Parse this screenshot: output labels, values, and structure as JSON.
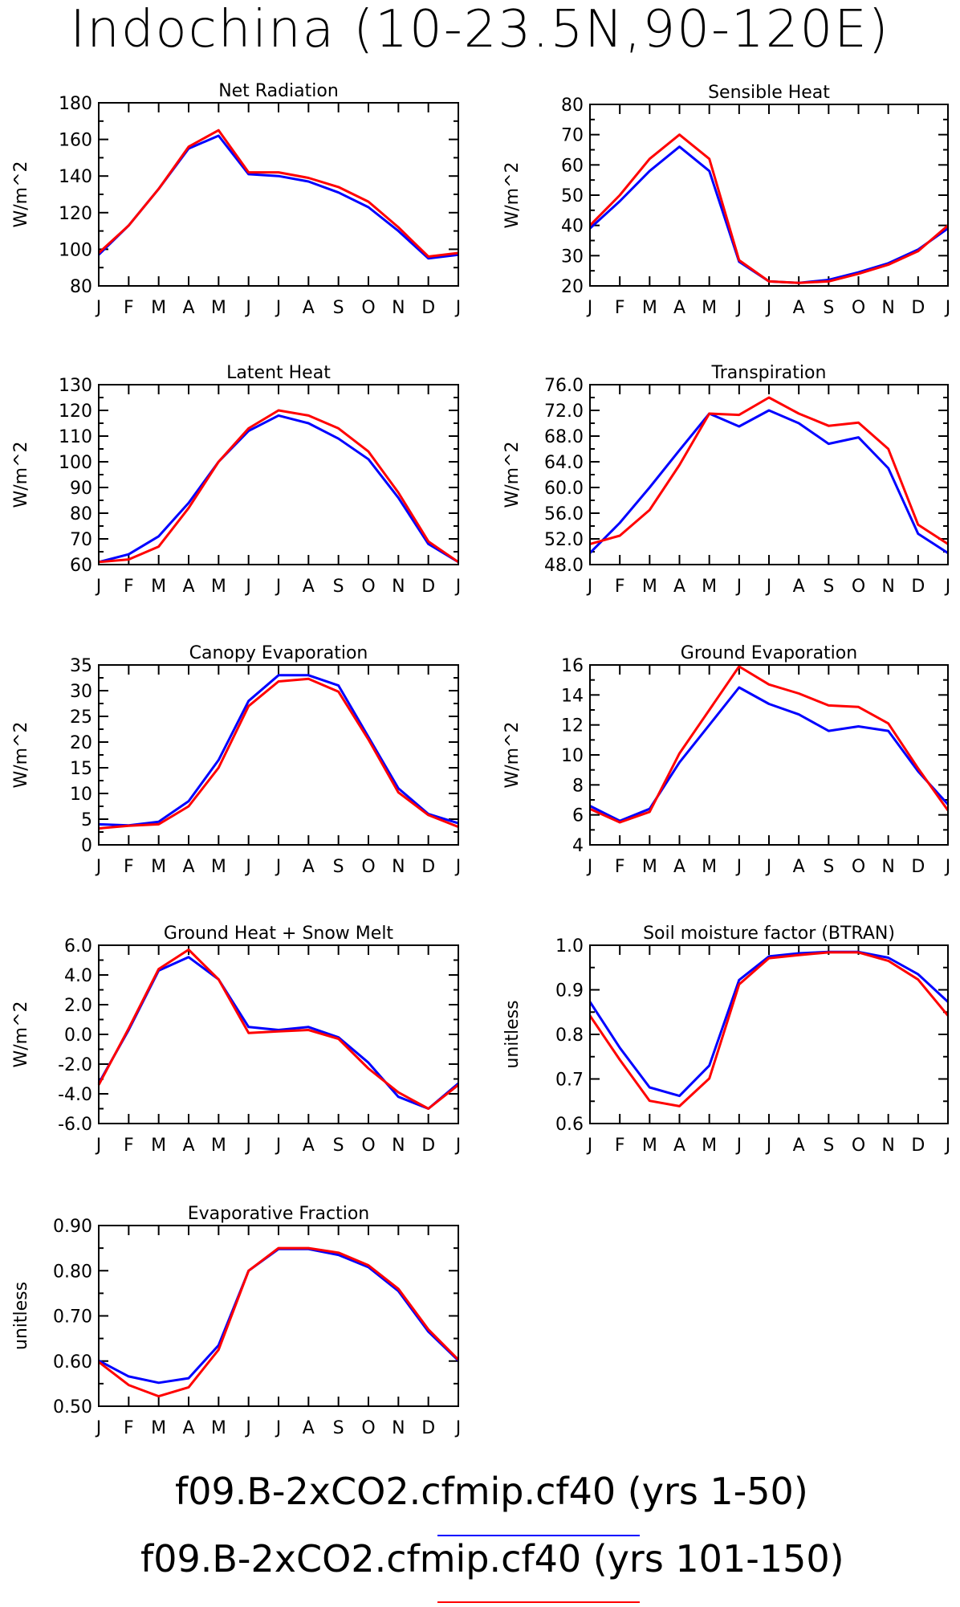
{
  "title": "Indochina (10-23.5N,90-120E)",
  "colors": {
    "series1": "#0000ff",
    "series2": "#ff0000",
    "axis": "#000000"
  },
  "legend": [
    {
      "text": "f09.B-2xCO2.cfmip.cf40 (yrs 1-50)",
      "color": "#0000ff"
    },
    {
      "text": "f09.B-2xCO2.cfmip.cf40 (yrs 101-150)",
      "color": "#ff0000"
    }
  ],
  "chart_data": [
    {
      "type": "line",
      "title": "Net Radiation",
      "ylabel": "W/m^2",
      "categories": [
        "J",
        "F",
        "M",
        "A",
        "M",
        "J",
        "J",
        "A",
        "S",
        "O",
        "N",
        "D",
        "J"
      ],
      "ylim": [
        80,
        180
      ],
      "yticks": [
        80,
        100,
        120,
        140,
        160,
        180
      ],
      "ytick_labels": [
        "80",
        "100",
        "120",
        "140",
        "160",
        "180"
      ],
      "series": [
        {
          "values": [
            97,
            113,
            133,
            155,
            162,
            141,
            140,
            137,
            131,
            123,
            110,
            95,
            97
          ],
          "color": "#0000ff"
        },
        {
          "values": [
            98,
            113,
            133,
            156,
            165,
            142,
            142,
            139,
            134,
            126,
            112,
            96,
            98
          ],
          "color": "#ff0000"
        }
      ]
    },
    {
      "type": "line",
      "title": "Sensible Heat",
      "ylabel": "W/m^2",
      "categories": [
        "J",
        "F",
        "M",
        "A",
        "M",
        "J",
        "J",
        "A",
        "S",
        "O",
        "N",
        "D",
        "J"
      ],
      "ylim": [
        20,
        80
      ],
      "yticks": [
        20,
        30,
        40,
        50,
        60,
        70,
        80
      ],
      "ytick_labels": [
        "20",
        "30",
        "40",
        "50",
        "60",
        "70",
        "80"
      ],
      "series": [
        {
          "values": [
            39,
            48,
            58,
            66,
            58,
            28,
            21.5,
            21,
            22,
            24.5,
            27.5,
            32,
            39
          ],
          "color": "#0000ff"
        },
        {
          "values": [
            40,
            50,
            62,
            70,
            62,
            28.5,
            21.5,
            21,
            21.5,
            24,
            27,
            31.5,
            40
          ],
          "color": "#ff0000"
        }
      ]
    },
    {
      "type": "line",
      "title": "Latent Heat",
      "ylabel": "W/m^2",
      "categories": [
        "J",
        "F",
        "M",
        "A",
        "M",
        "J",
        "J",
        "A",
        "S",
        "O",
        "N",
        "D",
        "J"
      ],
      "ylim": [
        60,
        130
      ],
      "yticks": [
        60,
        70,
        80,
        90,
        100,
        110,
        120,
        130
      ],
      "ytick_labels": [
        "60",
        "70",
        "80",
        "90",
        "100",
        "110",
        "120",
        "130"
      ],
      "series": [
        {
          "values": [
            61,
            64,
            71,
            84,
            100,
            112,
            118,
            115,
            109,
            101,
            86,
            68,
            61
          ],
          "color": "#0000ff"
        },
        {
          "values": [
            61,
            62,
            67,
            82,
            100,
            113,
            120,
            118,
            113,
            104,
            88,
            69,
            61
          ],
          "color": "#ff0000"
        }
      ]
    },
    {
      "type": "line",
      "title": "Transpiration",
      "ylabel": "W/m^2",
      "categories": [
        "J",
        "F",
        "M",
        "A",
        "M",
        "J",
        "J",
        "A",
        "S",
        "O",
        "N",
        "D",
        "J"
      ],
      "ylim": [
        48,
        76
      ],
      "yticks": [
        48,
        52,
        56,
        60,
        64,
        68,
        72,
        76
      ],
      "ytick_labels": [
        "48.0",
        "52.0",
        "56.0",
        "60.0",
        "64.0",
        "68.0",
        "72.0",
        "76.0"
      ],
      "series": [
        {
          "values": [
            49.8,
            54.5,
            60,
            65.8,
            71.5,
            69.5,
            72,
            70,
            66.8,
            67.8,
            63,
            52.8,
            49.8
          ],
          "color": "#0000ff"
        },
        {
          "values": [
            51.2,
            52.5,
            56.5,
            63.5,
            71.5,
            71.3,
            74,
            71.5,
            69.6,
            70.1,
            66,
            54.2,
            51.2
          ],
          "color": "#ff0000"
        }
      ]
    },
    {
      "type": "line",
      "title": "Canopy Evaporation",
      "ylabel": "W/m^2",
      "categories": [
        "J",
        "F",
        "M",
        "A",
        "M",
        "J",
        "J",
        "A",
        "S",
        "O",
        "N",
        "D",
        "J"
      ],
      "ylim": [
        0,
        35
      ],
      "yticks": [
        0,
        5,
        10,
        15,
        20,
        25,
        30,
        35
      ],
      "ytick_labels": [
        "0",
        "5",
        "10",
        "15",
        "20",
        "25",
        "30",
        "35"
      ],
      "series": [
        {
          "values": [
            4,
            3.8,
            4.5,
            8.5,
            16.5,
            28,
            33,
            33,
            31,
            21,
            11,
            6,
            4.2
          ],
          "color": "#0000ff"
        },
        {
          "values": [
            3.2,
            3.7,
            4,
            7.5,
            15,
            27,
            31.8,
            32.3,
            29.8,
            20.5,
            10.2,
            5.8,
            3.5
          ],
          "color": "#ff0000"
        }
      ]
    },
    {
      "type": "line",
      "title": "Ground Evaporation",
      "ylabel": "W/m^2",
      "categories": [
        "J",
        "F",
        "M",
        "A",
        "M",
        "J",
        "J",
        "A",
        "S",
        "O",
        "N",
        "D",
        "J"
      ],
      "ylim": [
        4,
        16
      ],
      "yticks": [
        4,
        6,
        8,
        10,
        12,
        14,
        16
      ],
      "ytick_labels": [
        "4",
        "6",
        "8",
        "10",
        "12",
        "14",
        "16"
      ],
      "series": [
        {
          "values": [
            6.6,
            5.6,
            6.4,
            9.5,
            12,
            14.5,
            13.4,
            12.7,
            11.6,
            11.9,
            11.6,
            8.9,
            6.7
          ],
          "color": "#0000ff"
        },
        {
          "values": [
            6.4,
            5.5,
            6.2,
            10.1,
            13,
            15.9,
            14.7,
            14.1,
            13.3,
            13.2,
            12.1,
            9.1,
            6.3
          ],
          "color": "#ff0000"
        }
      ]
    },
    {
      "type": "line",
      "title": "Ground Heat + Snow Melt",
      "ylabel": "W/m^2",
      "categories": [
        "J",
        "F",
        "M",
        "A",
        "M",
        "J",
        "J",
        "A",
        "S",
        "O",
        "N",
        "D",
        "J"
      ],
      "ylim": [
        -6,
        6
      ],
      "yticks": [
        -6,
        -4,
        -2,
        0,
        2,
        4,
        6
      ],
      "ytick_labels": [
        "-6.0",
        "-4.0",
        "-2.0",
        "0.0",
        "2.0",
        "4.0",
        "6.0"
      ],
      "series": [
        {
          "values": [
            -3.3,
            0.3,
            4.3,
            5.2,
            3.7,
            0.5,
            0.3,
            0.5,
            -0.2,
            -1.9,
            -4.2,
            -5,
            -3.3
          ],
          "color": "#0000ff"
        },
        {
          "values": [
            -3.4,
            0.4,
            4.4,
            5.7,
            3.7,
            0.1,
            0.2,
            0.3,
            -0.3,
            -2.3,
            -3.9,
            -5,
            -3.4
          ],
          "color": "#ff0000"
        }
      ]
    },
    {
      "type": "line",
      "title": "Soil moisture factor (BTRAN)",
      "ylabel": "unitless",
      "categories": [
        "J",
        "F",
        "M",
        "A",
        "M",
        "J",
        "J",
        "A",
        "S",
        "O",
        "N",
        "D",
        "J"
      ],
      "ylim": [
        0.6,
        1.0
      ],
      "yticks": [
        0.6,
        0.7,
        0.8,
        0.9,
        1.0
      ],
      "ytick_labels": [
        "0.6",
        "0.7",
        "0.8",
        "0.9",
        "1.0"
      ],
      "series": [
        {
          "values": [
            0.873,
            0.77,
            0.681,
            0.662,
            0.73,
            0.922,
            0.975,
            0.982,
            0.985,
            0.985,
            0.972,
            0.935,
            0.873
          ],
          "color": "#0000ff"
        },
        {
          "values": [
            0.842,
            0.743,
            0.651,
            0.639,
            0.701,
            0.912,
            0.971,
            0.978,
            0.984,
            0.984,
            0.965,
            0.923,
            0.842
          ],
          "color": "#ff0000"
        }
      ]
    },
    {
      "type": "line",
      "title": "Evaporative Fraction",
      "ylabel": "unitless",
      "categories": [
        "J",
        "F",
        "M",
        "A",
        "M",
        "J",
        "J",
        "A",
        "S",
        "O",
        "N",
        "D",
        "J"
      ],
      "ylim": [
        0.5,
        0.9
      ],
      "yticks": [
        0.5,
        0.6,
        0.7,
        0.8,
        0.9
      ],
      "ytick_labels": [
        "0.50",
        "0.60",
        "0.70",
        "0.80",
        "0.90"
      ],
      "series": [
        {
          "values": [
            0.601,
            0.566,
            0.552,
            0.562,
            0.635,
            0.8,
            0.848,
            0.848,
            0.835,
            0.808,
            0.755,
            0.665,
            0.601
          ],
          "color": "#0000ff"
        },
        {
          "values": [
            0.598,
            0.547,
            0.522,
            0.542,
            0.625,
            0.8,
            0.85,
            0.85,
            0.84,
            0.812,
            0.76,
            0.67,
            0.603
          ],
          "color": "#ff0000"
        }
      ]
    }
  ]
}
